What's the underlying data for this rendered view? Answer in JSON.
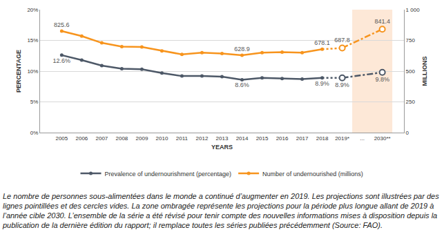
{
  "chart_data": {
    "type": "line",
    "caption": "Le nombre de personnes sous-alimentées dans le monde a continué d’augmenter en 2019. Les projections sont illustrées par des lignes pointillées et des cercles vides. La zone ombragée représente les projections pour la période plus longue allant de 2019 à l’année cible 2030. L’ensemble de la série a été révisé pour tenir compte des nouvelles informations mises à disposition depuis la publication de la dernière édition du rapport; il remplace toutes les séries publiées précédemment (Source: FAO).",
    "x_label": "YEARS",
    "y_label": "PERCENTAGE",
    "y2_label": "MILLIONS",
    "categories": [
      "2005",
      "2006",
      "2007",
      "2008",
      "2009",
      "2010",
      "2011",
      "2012",
      "2013",
      "2014",
      "2015",
      "2016",
      "2017",
      "2018",
      "2019*",
      "...",
      "2030**"
    ],
    "ylim": [
      0,
      20
    ],
    "yticks": [
      {
        "value": 0,
        "label": "0%"
      },
      {
        "value": 5,
        "label": "5%"
      },
      {
        "value": 10,
        "label": "10%"
      },
      {
        "value": 15,
        "label": "15%"
      },
      {
        "value": 20,
        "label": "20%"
      }
    ],
    "y2lim": [
      0,
      1000
    ],
    "y2ticks": [
      0,
      250,
      500,
      750,
      {
        "value": 1000,
        "label": "1 000"
      }
    ],
    "grid": true,
    "legend": "bottom",
    "data_labels": true,
    "series": [
      {
        "name": "Prevalence of undernourishment (percentage)",
        "color": "#4d5867",
        "marker": "circle",
        "line_style": "solid",
        "values": [
          12.6,
          11.8,
          10.9,
          10.4,
          10.3,
          9.7,
          9.2,
          9.2,
          9.1,
          8.6,
          8.9,
          8.8,
          8.7,
          8.9,
          null,
          null,
          null
        ],
        "value_labels": [
          "12.6%",
          null,
          null,
          null,
          null,
          null,
          null,
          null,
          null,
          "8.6%",
          null,
          null,
          null,
          "8.9%",
          null,
          null,
          null
        ]
      },
      {
        "color": "#4d5867",
        "marker": "none",
        "line_style": "dotted",
        "values": [
          null,
          null,
          null,
          null,
          null,
          null,
          null,
          null,
          null,
          null,
          null,
          null,
          null,
          8.9,
          8.9,
          null,
          null
        ]
      },
      {
        "color": "#4d5867",
        "marker": "open_circle",
        "line_style": "dashdot",
        "values": [
          null,
          null,
          null,
          null,
          null,
          null,
          null,
          null,
          null,
          null,
          null,
          null,
          null,
          null,
          8.9,
          null,
          9.8
        ],
        "value_labels": [
          null,
          null,
          null,
          null,
          null,
          null,
          null,
          null,
          null,
          null,
          null,
          null,
          null,
          null,
          "8.9%",
          null,
          "9.8%"
        ]
      },
      {
        "name": "Number of undernourished (millions)",
        "color": "#f7941d",
        "marker": "circle",
        "line_style": "solid",
        "axis": "y2",
        "values": [
          825.6,
          785,
          730,
          700,
          697,
          665,
          636,
          650,
          643,
          628.9,
          650,
          655,
          650,
          678.1,
          null,
          null,
          null
        ],
        "value_labels": [
          "825.6",
          null,
          null,
          null,
          null,
          null,
          null,
          null,
          null,
          "628.9",
          null,
          null,
          null,
          "678.1",
          null,
          null,
          null
        ]
      },
      {
        "color": "#f7941d",
        "marker": "none",
        "line_style": "dotted",
        "axis": "y2",
        "values": [
          null,
          null,
          null,
          null,
          null,
          null,
          null,
          null,
          null,
          null,
          null,
          null,
          null,
          678.1,
          687.8,
          null,
          null
        ]
      },
      {
        "color": "#f7941d",
        "marker": "open_circle",
        "line_style": "dashdot",
        "axis": "y2",
        "values": [
          null,
          null,
          null,
          null,
          null,
          null,
          null,
          null,
          null,
          null,
          null,
          null,
          null,
          null,
          687.8,
          null,
          841.4
        ],
        "value_labels": [
          null,
          null,
          null,
          null,
          null,
          null,
          null,
          null,
          null,
          null,
          null,
          null,
          null,
          null,
          "687.8",
          null,
          "841.4"
        ]
      }
    ]
  }
}
